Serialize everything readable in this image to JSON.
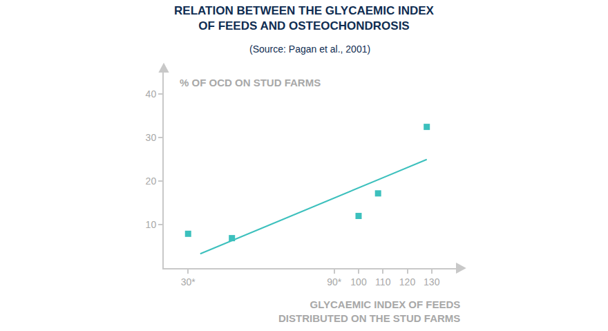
{
  "chart_data": {
    "type": "scatter",
    "title": [
      "RELATION BETWEEN THE GLYCAEMIC INDEX",
      "OF FEEDS AND OSTEOCHONDROSIS"
    ],
    "subtitle": "(Source: Pagan et al., 2001)",
    "ylabel": "% OF OCD ON STUD FARMS",
    "xlabel": [
      "GLYCAEMIC INDEX OF FEEDS",
      "DISTRIBUTED ON THE STUD FARMS"
    ],
    "series": [
      {
        "type": "scatter",
        "marker": "square",
        "color": "#3cc0bd",
        "x": [
          30,
          48,
          100,
          108,
          128
        ],
        "values": [
          7.9,
          6.9,
          12,
          17.2,
          32.5
        ]
      },
      {
        "type": "line",
        "line_style": "solid",
        "color": "#3cc0bd",
        "x": [
          35,
          128
        ],
        "values": [
          3.3,
          25
        ]
      }
    ],
    "xlim": [
      20,
      140
    ],
    "xticks": [
      {
        "value": 30,
        "label": "30*"
      },
      {
        "value": 90,
        "label": "90*"
      },
      100,
      110,
      120,
      130
    ],
    "ylim": [
      0,
      45
    ],
    "yticks": [
      10,
      20,
      30,
      40
    ],
    "grid": false
  }
}
